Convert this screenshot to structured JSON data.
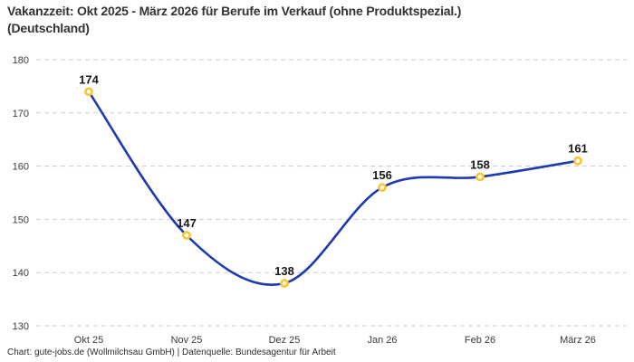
{
  "title": {
    "line1": "Vakanzzeit: Okt 2025 - März 2026 für Berufe im Verkauf (ohne Produktspezial.)",
    "line2": "(Deutschland)"
  },
  "footer": "Chart: gute-jobs.de (Wollmilchsau GmbH) | Datenquelle: Bundesagentur für Arbeit",
  "chart_data": {
    "type": "line",
    "title": "Vakanzzeit: Okt 2025 - März 2026 für Berufe im Verkauf (ohne Produktspezial.) (Deutschland)",
    "categories": [
      "Okt 25",
      "Nov 25",
      "Dez 25",
      "Jan 26",
      "Feb 26",
      "März 26"
    ],
    "values": [
      174,
      147,
      138,
      156,
      158,
      161
    ],
    "xlabel": "",
    "ylabel": "",
    "ylim": [
      130,
      180
    ],
    "yticks": [
      130,
      140,
      150,
      160,
      170,
      180
    ],
    "grid": "horizontal-dashed",
    "smooth": true,
    "data_labels": true,
    "legend": "none",
    "line_color": "#1d3ab0",
    "marker_color": "#fbc52d",
    "marker_fill": "#ffffff",
    "grid_color": "#cbcbcb",
    "label_color": "#191919",
    "tick_color": "#3a3a3a"
  }
}
